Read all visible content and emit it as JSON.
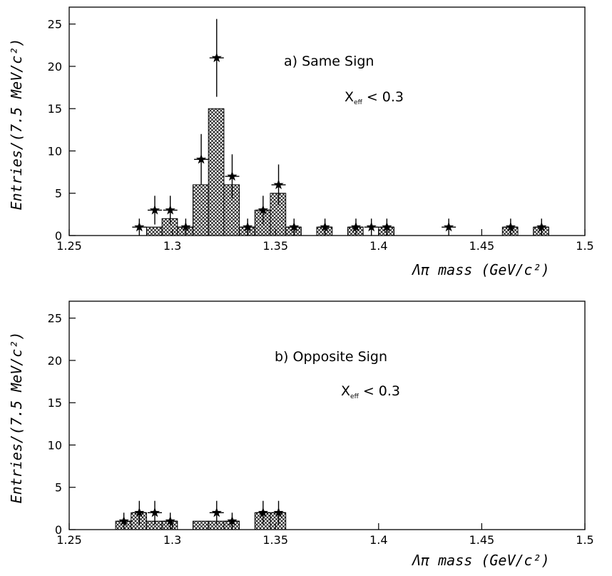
{
  "chart_data": [
    {
      "type": "bar",
      "panel": "a",
      "xlabel": "Λπ mass (GeV/c²)",
      "ylabel": "Entries/(7.5 MeV/c²)",
      "xlim": [
        1.25,
        1.5
      ],
      "ylim": [
        0,
        27
      ],
      "xticks": [
        "1.25",
        "1.3",
        "1.35",
        "1.4",
        "1.45",
        "1.5"
      ],
      "yticks": [
        "0",
        "5",
        "10",
        "15",
        "20",
        "25"
      ],
      "annotation": "a)  Same Sign",
      "cut_main": "X",
      "cut_sub": "eff",
      "cut_rest": " < 0.3",
      "histogram": {
        "bin_width": 0.0075,
        "bins": [
          {
            "x_low": 1.2875,
            "value": 1
          },
          {
            "x_low": 1.295,
            "value": 2
          },
          {
            "x_low": 1.3025,
            "value": 1
          },
          {
            "x_low": 1.31,
            "value": 6
          },
          {
            "x_low": 1.3175,
            "value": 15
          },
          {
            "x_low": 1.325,
            "value": 6
          },
          {
            "x_low": 1.3325,
            "value": 1
          },
          {
            "x_low": 1.34,
            "value": 3
          },
          {
            "x_low": 1.3475,
            "value": 5
          },
          {
            "x_low": 1.355,
            "value": 1
          },
          {
            "x_low": 1.37,
            "value": 1
          },
          {
            "x_low": 1.385,
            "value": 1
          },
          {
            "x_low": 1.4,
            "value": 1
          },
          {
            "x_low": 1.46,
            "value": 1
          },
          {
            "x_low": 1.475,
            "value": 1
          }
        ]
      },
      "points": [
        {
          "x": 1.284,
          "y": 1,
          "err": 1.0
        },
        {
          "x": 1.2915,
          "y": 3,
          "err": 1.7
        },
        {
          "x": 1.299,
          "y": 3,
          "err": 1.7
        },
        {
          "x": 1.3065,
          "y": 1,
          "err": 1.0
        },
        {
          "x": 1.314,
          "y": 9,
          "err": 3.0
        },
        {
          "x": 1.3215,
          "y": 21,
          "err": 4.6
        },
        {
          "x": 1.329,
          "y": 7,
          "err": 2.6
        },
        {
          "x": 1.3365,
          "y": 1,
          "err": 1.0
        },
        {
          "x": 1.344,
          "y": 3,
          "err": 1.7
        },
        {
          "x": 1.3515,
          "y": 6,
          "err": 2.4
        },
        {
          "x": 1.359,
          "y": 1,
          "err": 1.0
        },
        {
          "x": 1.374,
          "y": 1,
          "err": 1.0
        },
        {
          "x": 1.389,
          "y": 1,
          "err": 1.0
        },
        {
          "x": 1.3965,
          "y": 1,
          "err": 1.0
        },
        {
          "x": 1.404,
          "y": 1,
          "err": 1.0
        },
        {
          "x": 1.434,
          "y": 1,
          "err": 1.0
        },
        {
          "x": 1.464,
          "y": 1,
          "err": 1.0
        },
        {
          "x": 1.479,
          "y": 1,
          "err": 1.0
        }
      ]
    },
    {
      "type": "bar",
      "panel": "b",
      "xlabel": "Λπ mass (GeV/c²)",
      "ylabel": "Entries/(7.5 MeV/c²)",
      "xlim": [
        1.25,
        1.5
      ],
      "ylim": [
        0,
        27
      ],
      "xticks": [
        "1.25",
        "1.3",
        "1.35",
        "1.4",
        "1.45",
        "1.5"
      ],
      "yticks": [
        "0",
        "5",
        "10",
        "15",
        "20",
        "25"
      ],
      "annotation": "b)  Opposite Sign",
      "cut_main": "X",
      "cut_sub": "eff",
      "cut_rest": " < 0.3",
      "histogram": {
        "bin_width": 0.0075,
        "bins": [
          {
            "x_low": 1.2725,
            "value": 1
          },
          {
            "x_low": 1.28,
            "value": 2
          },
          {
            "x_low": 1.2875,
            "value": 1
          },
          {
            "x_low": 1.295,
            "value": 1
          },
          {
            "x_low": 1.31,
            "value": 1
          },
          {
            "x_low": 1.3175,
            "value": 1
          },
          {
            "x_low": 1.325,
            "value": 1
          },
          {
            "x_low": 1.34,
            "value": 2
          },
          {
            "x_low": 1.3475,
            "value": 2
          }
        ]
      },
      "points": [
        {
          "x": 1.2765,
          "y": 1,
          "err": 1.0
        },
        {
          "x": 1.284,
          "y": 2,
          "err": 1.4
        },
        {
          "x": 1.2915,
          "y": 2,
          "err": 1.4
        },
        {
          "x": 1.299,
          "y": 1,
          "err": 1.0
        },
        {
          "x": 1.3215,
          "y": 2,
          "err": 1.4
        },
        {
          "x": 1.329,
          "y": 1,
          "err": 1.0
        },
        {
          "x": 1.344,
          "y": 2,
          "err": 1.4
        },
        {
          "x": 1.3515,
          "y": 2,
          "err": 1.4
        }
      ]
    }
  ]
}
